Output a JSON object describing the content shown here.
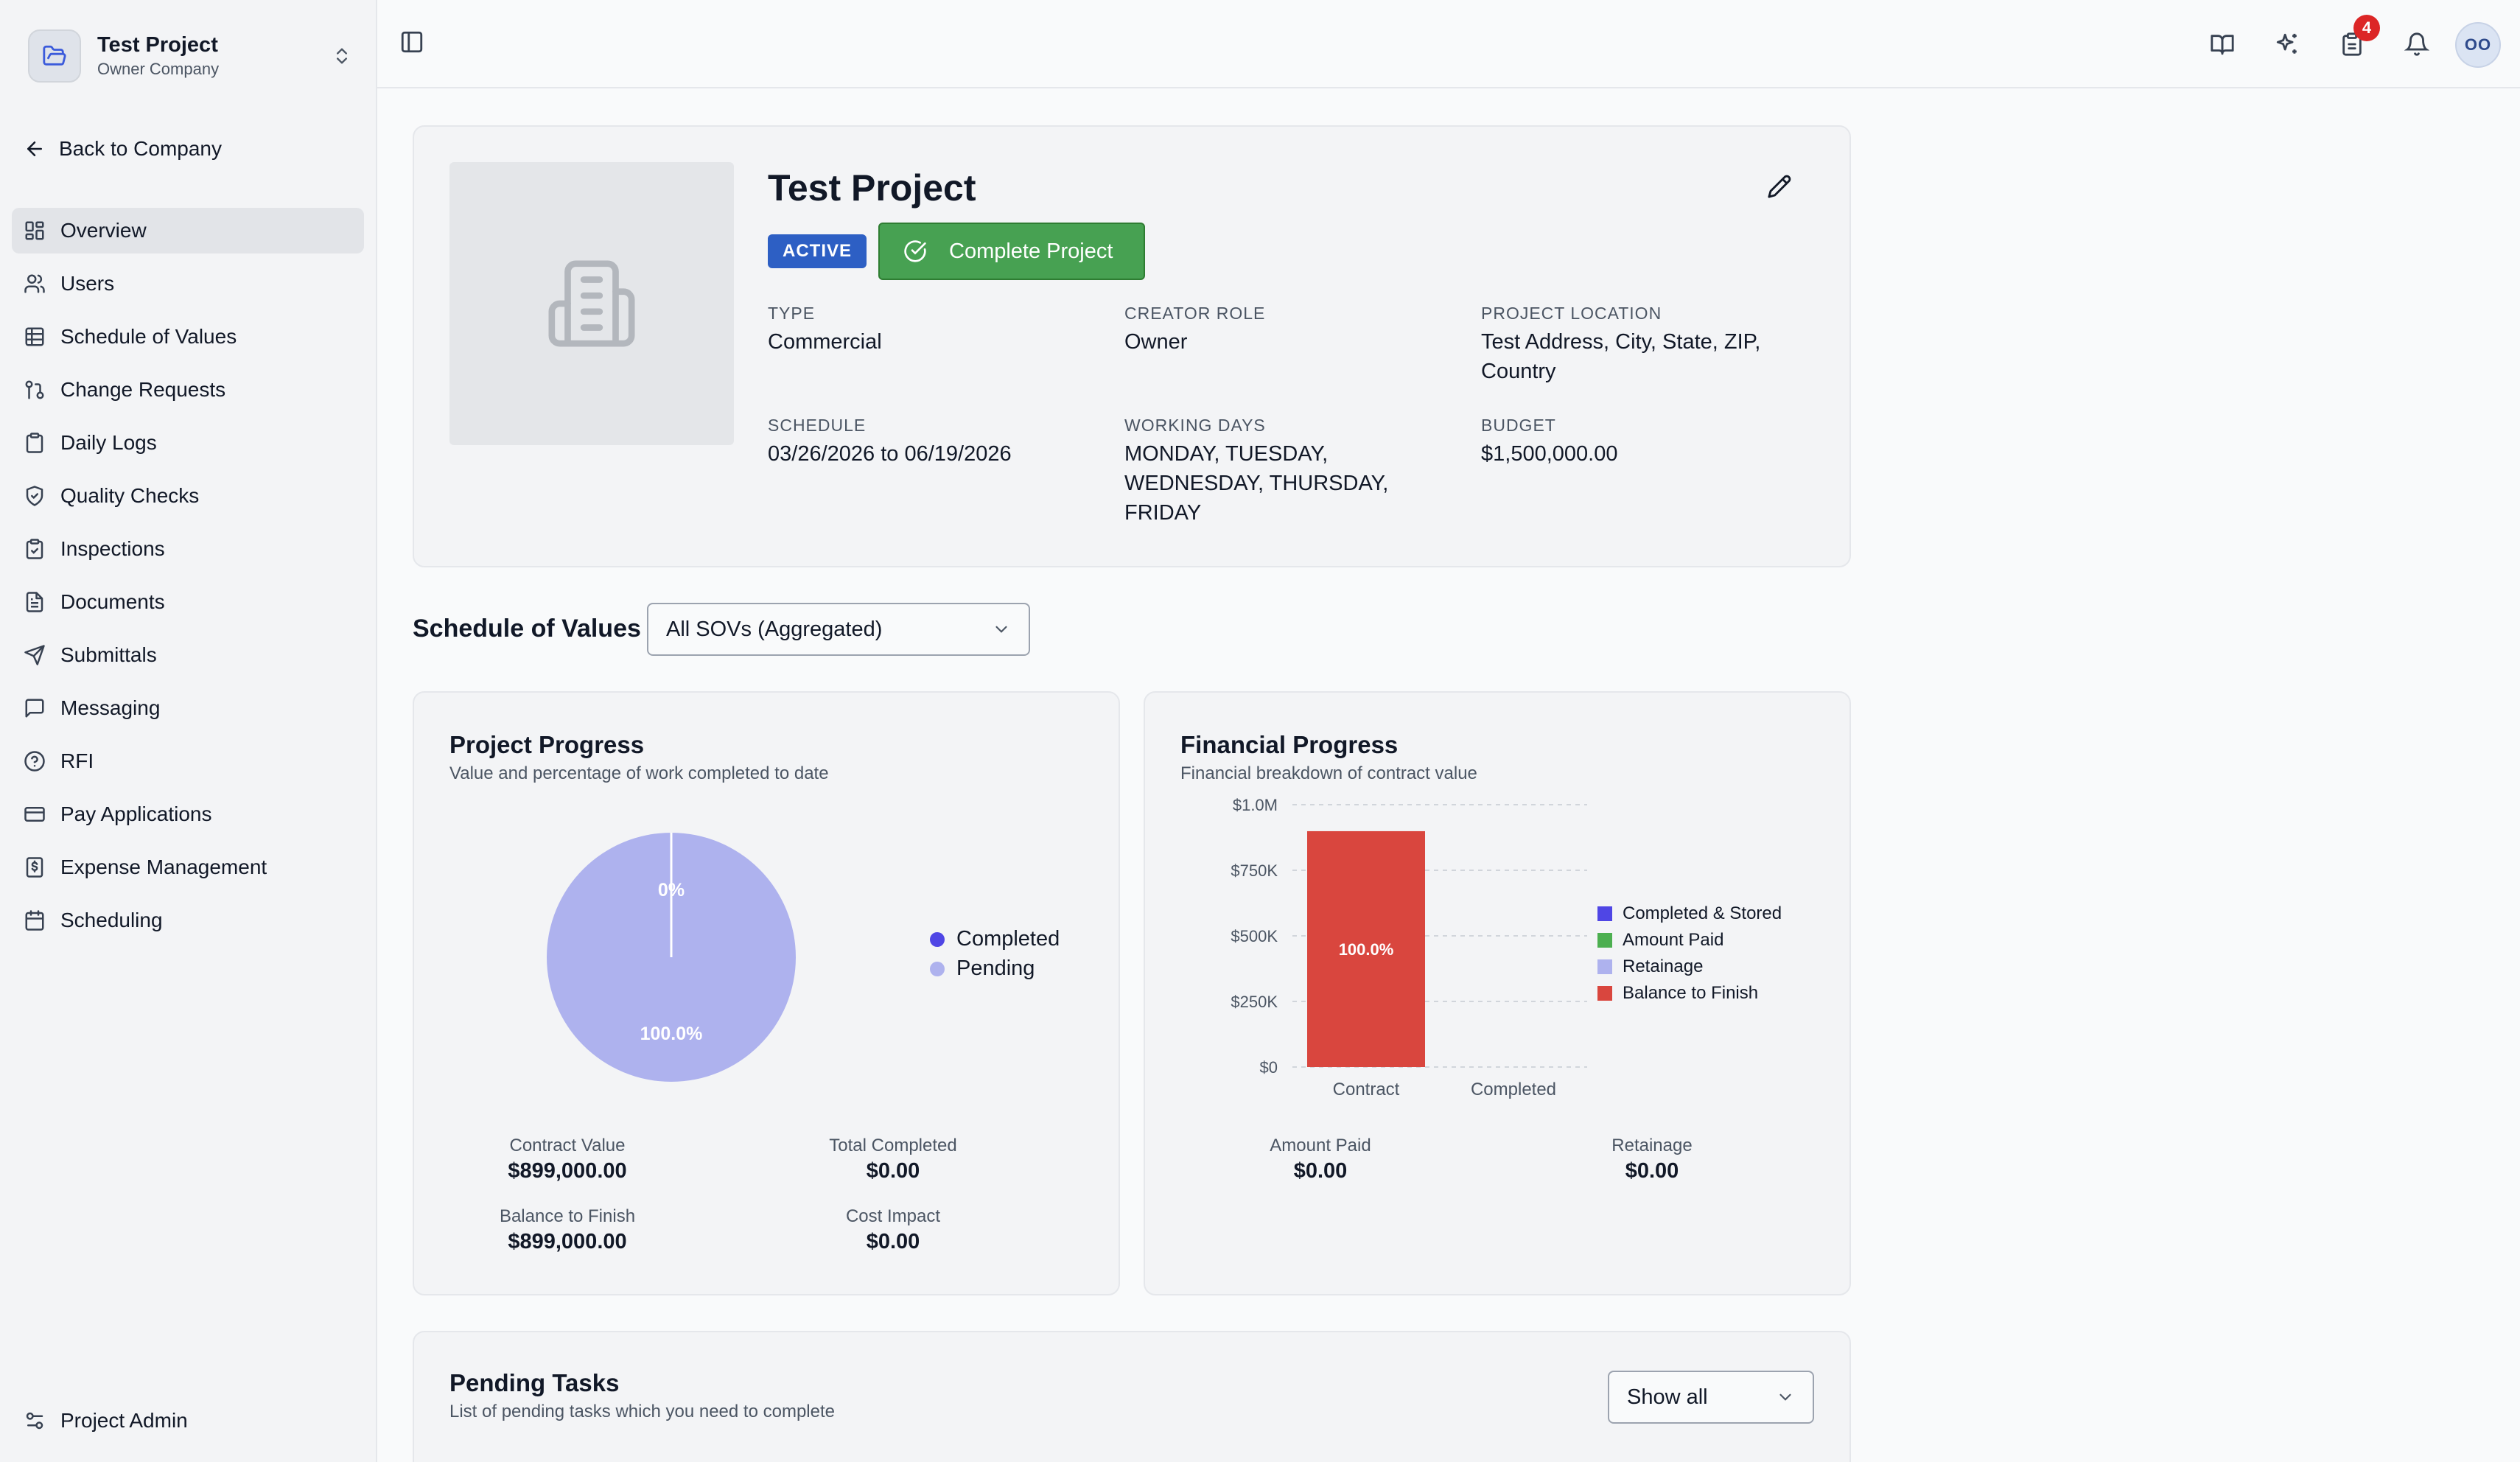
{
  "sidebar": {
    "project_name": "Test Project",
    "company": "Owner Company",
    "back_label": "Back to Company",
    "items": [
      {
        "label": "Overview",
        "icon": "layout-grid-icon",
        "active": true
      },
      {
        "label": "Users",
        "icon": "users-icon"
      },
      {
        "label": "Schedule of Values",
        "icon": "table-icon"
      },
      {
        "label": "Change Requests",
        "icon": "git-pull-request-icon"
      },
      {
        "label": "Daily Logs",
        "icon": "clipboard-icon"
      },
      {
        "label": "Quality Checks",
        "icon": "shield-check-icon"
      },
      {
        "label": "Inspections",
        "icon": "clipboard-check-icon"
      },
      {
        "label": "Documents",
        "icon": "file-text-icon"
      },
      {
        "label": "Submittals",
        "icon": "send-icon"
      },
      {
        "label": "Messaging",
        "icon": "message-square-icon"
      },
      {
        "label": "RFI",
        "icon": "help-circle-icon"
      },
      {
        "label": "Pay Applications",
        "icon": "credit-card-icon"
      },
      {
        "label": "Expense Management",
        "icon": "receipt-icon"
      },
      {
        "label": "Scheduling",
        "icon": "calendar-icon"
      }
    ],
    "admin_label": "Project Admin"
  },
  "topbar": {
    "task_badge": "4",
    "avatar_initials": "OO"
  },
  "project": {
    "title": "Test Project",
    "status": "ACTIVE",
    "complete_label": "Complete Project",
    "fields": {
      "type": {
        "label": "TYPE",
        "value": "Commercial"
      },
      "creator_role": {
        "label": "CREATOR ROLE",
        "value": "Owner"
      },
      "location": {
        "label": "PROJECT LOCATION",
        "value": "Test Address, City, State, ZIP, Country"
      },
      "schedule": {
        "label": "SCHEDULE",
        "value": "03/26/2026 to 06/19/2026"
      },
      "working_days": {
        "label": "WORKING DAYS",
        "value": "MONDAY, TUESDAY, WEDNESDAY, THURSDAY, FRIDAY"
      },
      "budget": {
        "label": "BUDGET",
        "value": "$1,500,000.00"
      }
    }
  },
  "sov": {
    "label": "Schedule of Values",
    "selected": "All SOVs (Aggregated)"
  },
  "project_progress": {
    "title": "Project Progress",
    "subtitle": "Value and percentage of work completed to date",
    "legend": [
      {
        "label": "Completed",
        "color": "#4f46e5"
      },
      {
        "label": "Pending",
        "color": "#aeb2ee"
      }
    ],
    "stats": {
      "contract_value": {
        "label": "Contract Value",
        "value": "$899,000.00"
      },
      "total_completed": {
        "label": "Total Completed",
        "value": "$0.00"
      },
      "balance_to_finish": {
        "label": "Balance to Finish",
        "value": "$899,000.00"
      },
      "cost_impact": {
        "label": "Cost Impact",
        "value": "$0.00"
      }
    }
  },
  "financial_progress": {
    "title": "Financial Progress",
    "subtitle": "Financial breakdown of contract value",
    "stats": {
      "amount_paid": {
        "label": "Amount Paid",
        "value": "$0.00"
      },
      "retainage": {
        "label": "Retainage",
        "value": "$0.00"
      }
    }
  },
  "chart_data": [
    {
      "type": "pie",
      "categories": [
        "Completed",
        "Pending"
      ],
      "values": [
        0,
        100
      ],
      "labels": [
        "0%",
        "100.0%"
      ],
      "colors": [
        "#4f46e5",
        "#aeb2ee"
      ],
      "legend": "right"
    },
    {
      "type": "bar",
      "categories": [
        "Contract",
        "Completed"
      ],
      "series": [
        {
          "name": "Completed & Stored",
          "color": "#4f46e5",
          "values": [
            0,
            0
          ]
        },
        {
          "name": "Amount Paid",
          "color": "#4caf50",
          "values": [
            0,
            0
          ]
        },
        {
          "name": "Retainage",
          "color": "#aeb2ee",
          "values": [
            0,
            0
          ]
        },
        {
          "name": "Balance to Finish",
          "color": "#d9463e",
          "values": [
            899000,
            0
          ]
        }
      ],
      "bar_labels": [
        "100.0%",
        ""
      ],
      "yticks": [
        "$0",
        "$250K",
        "$500K",
        "$750K",
        "$1.0M"
      ],
      "ytick_values": [
        0,
        250000,
        500000,
        750000,
        1000000
      ],
      "ylim": [
        0,
        1000000
      ],
      "grid": true,
      "legend": "right"
    }
  ],
  "tasks": {
    "title": "Pending Tasks",
    "subtitle": "List of pending tasks which you need to complete",
    "filter": "Show all"
  }
}
